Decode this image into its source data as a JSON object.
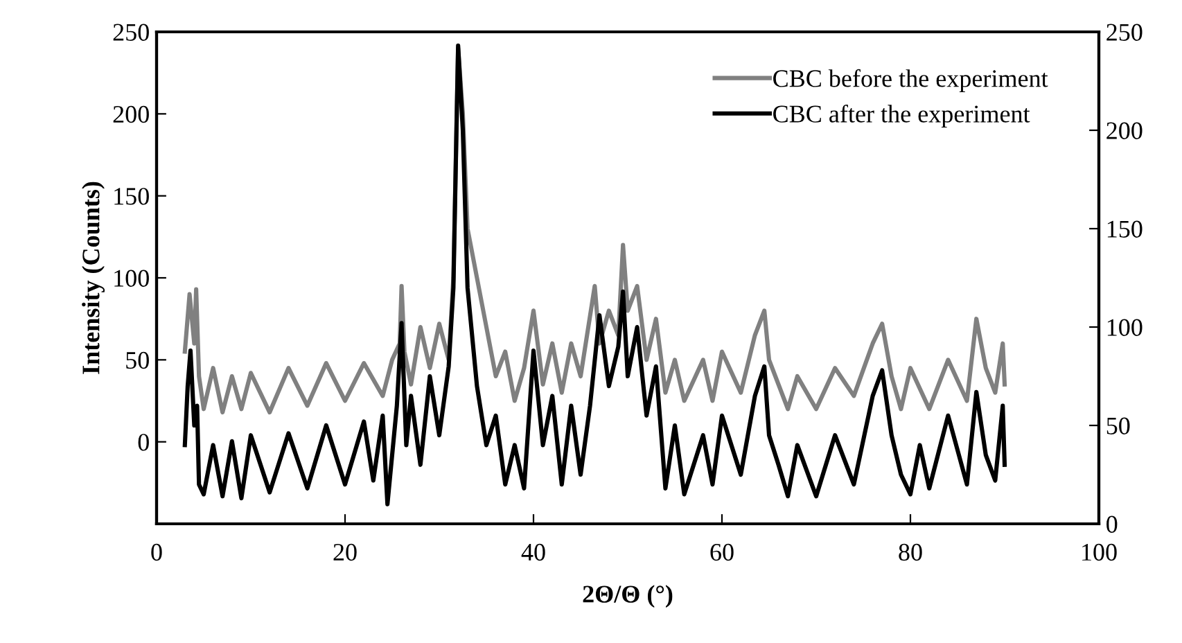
{
  "chart_data": {
    "type": "line",
    "xlabel": "2Θ/Θ (°)",
    "ylabel": "Intensity (Counts)",
    "xlim": [
      0,
      100
    ],
    "xticks": [
      0,
      20,
      40,
      60,
      80,
      100
    ],
    "ylim": [
      -50,
      250
    ],
    "yticks": [
      {
        "value": -50,
        "label": null
      },
      0,
      50,
      100,
      150,
      200,
      250
    ],
    "y2lim": [
      0,
      250
    ],
    "y2ticks": [
      0,
      50,
      100,
      150,
      200,
      250
    ],
    "grid": false,
    "legend": "top right",
    "marker": "none",
    "line_style": "solid",
    "series": [
      {
        "name": "CBC before the experiment",
        "color": "#808080",
        "x": [
          3,
          3.5,
          4,
          4.2,
          4.5,
          5,
          6,
          7,
          8,
          9,
          10,
          12,
          14,
          16,
          18,
          20,
          22,
          24,
          25,
          25.8,
          26,
          26.3,
          27,
          28,
          29,
          30,
          31,
          31.5,
          32,
          32.5,
          33,
          34,
          35,
          36,
          37,
          38,
          39,
          40,
          41,
          42,
          43,
          44,
          45,
          46.5,
          47,
          48,
          49,
          49.5,
          50,
          51,
          52,
          53,
          54,
          55,
          56,
          58,
          59,
          60,
          62,
          63.5,
          64.5,
          65,
          66,
          67,
          68,
          70,
          72,
          74,
          76,
          77,
          78,
          79,
          80,
          82,
          84,
          86,
          87,
          88,
          89,
          89.8,
          90
        ],
        "values": [
          55,
          90,
          60,
          93,
          40,
          20,
          45,
          18,
          40,
          20,
          42,
          18,
          45,
          22,
          48,
          25,
          48,
          28,
          50,
          60,
          95,
          55,
          35,
          70,
          45,
          72,
          50,
          100,
          240,
          200,
          130,
          100,
          70,
          40,
          55,
          25,
          45,
          80,
          35,
          60,
          30,
          60,
          40,
          95,
          60,
          80,
          65,
          120,
          80,
          95,
          50,
          75,
          30,
          50,
          25,
          50,
          25,
          55,
          30,
          65,
          80,
          50,
          35,
          20,
          40,
          20,
          45,
          28,
          60,
          72,
          40,
          20,
          45,
          20,
          50,
          25,
          75,
          45,
          30,
          60,
          35
        ]
      },
      {
        "name": "CBC after the experiment",
        "color": "#000000",
        "axis": "y2",
        "x": [
          3,
          3.3,
          3.6,
          4,
          4.3,
          4.5,
          5,
          6,
          7,
          8,
          9,
          10,
          12,
          14,
          16,
          18,
          20,
          22,
          23,
          24,
          24.5,
          25.5,
          26,
          26.5,
          27,
          28,
          29,
          30,
          31,
          31.5,
          32,
          32.5,
          33,
          34,
          35,
          36,
          37,
          38,
          39,
          40,
          41,
          42,
          43,
          44,
          45,
          46,
          47,
          48,
          49,
          49.5,
          50,
          51,
          52,
          53,
          54,
          55,
          56,
          58,
          59,
          60,
          62,
          63.5,
          64.5,
          65,
          66,
          67,
          68,
          70,
          72,
          74,
          76,
          77,
          78,
          79,
          80,
          81,
          82,
          84,
          86,
          87,
          88,
          89,
          89.8,
          90
        ],
        "values": [
          40,
          70,
          88,
          50,
          60,
          20,
          15,
          40,
          14,
          42,
          13,
          45,
          16,
          46,
          18,
          50,
          20,
          52,
          22,
          55,
          10,
          60,
          102,
          40,
          65,
          30,
          75,
          45,
          80,
          120,
          243,
          200,
          120,
          70,
          40,
          55,
          20,
          40,
          18,
          88,
          40,
          65,
          20,
          60,
          25,
          60,
          106,
          70,
          90,
          118,
          75,
          100,
          55,
          80,
          18,
          50,
          15,
          45,
          20,
          55,
          25,
          65,
          80,
          45,
          30,
          14,
          40,
          14,
          45,
          20,
          65,
          78,
          45,
          25,
          15,
          40,
          18,
          55,
          20,
          67,
          35,
          22,
          60,
          30
        ]
      }
    ]
  }
}
